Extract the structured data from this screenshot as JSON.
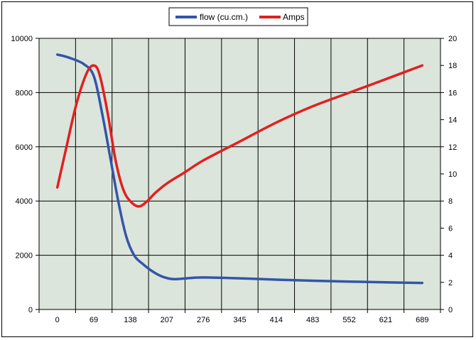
{
  "chart_data": {
    "type": "line",
    "title": "",
    "xlabel": "",
    "ylabel": "",
    "y2label": "",
    "x_ticks": [
      "0",
      "69",
      "138",
      "207",
      "276",
      "345",
      "414",
      "483",
      "552",
      "621",
      "689"
    ],
    "ylim": [
      0,
      10000
    ],
    "y_ticks": [
      "0",
      "2000",
      "4000",
      "6000",
      "8000",
      "10000"
    ],
    "y2lim": [
      0,
      20
    ],
    "y2_ticks": [
      "0",
      "2",
      "4",
      "6",
      "8",
      "10",
      "12",
      "14",
      "16",
      "18",
      "20"
    ],
    "grid": true,
    "plot_background": "#dbe5db",
    "legend_position": "top",
    "series": [
      {
        "name": "flow (cu.cm.)",
        "axis": "left",
        "color": "#3355aa",
        "points": [
          [
            0,
            9400
          ],
          [
            20,
            9300
          ],
          [
            50,
            9050
          ],
          [
            69,
            8600
          ],
          [
            85,
            7200
          ],
          [
            100,
            5600
          ],
          [
            115,
            4000
          ],
          [
            130,
            2700
          ],
          [
            145,
            2000
          ],
          [
            160,
            1700
          ],
          [
            180,
            1400
          ],
          [
            200,
            1200
          ],
          [
            220,
            1120
          ],
          [
            250,
            1160
          ],
          [
            276,
            1180
          ],
          [
            345,
            1150
          ],
          [
            414,
            1100
          ],
          [
            483,
            1060
          ],
          [
            552,
            1030
          ],
          [
            621,
            1000
          ],
          [
            689,
            980
          ]
        ]
      },
      {
        "name": "Amps",
        "axis": "right",
        "color": "#e02020",
        "points": [
          [
            0,
            9
          ],
          [
            15,
            11.6
          ],
          [
            35,
            15
          ],
          [
            55,
            17.4
          ],
          [
            69,
            18
          ],
          [
            80,
            17.3
          ],
          [
            95,
            14.5
          ],
          [
            110,
            11
          ],
          [
            125,
            8.8
          ],
          [
            140,
            7.9
          ],
          [
            155,
            7.6
          ],
          [
            170,
            8
          ],
          [
            185,
            8.6
          ],
          [
            207,
            9.3
          ],
          [
            240,
            10.1
          ],
          [
            276,
            11
          ],
          [
            345,
            12.4
          ],
          [
            414,
            13.8
          ],
          [
            483,
            15
          ],
          [
            552,
            16
          ],
          [
            621,
            17
          ],
          [
            689,
            18
          ]
        ]
      }
    ]
  }
}
